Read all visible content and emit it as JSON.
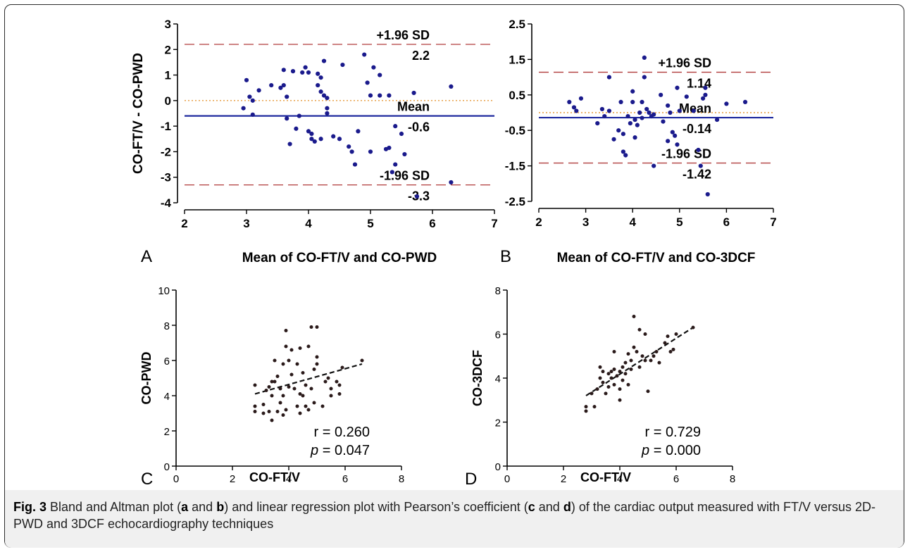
{
  "figure": {
    "caption_label": "Fig. 3",
    "caption_parts": [
      {
        "t": " Bland and Altman plot (",
        "b": false
      },
      {
        "t": "a",
        "b": true
      },
      {
        "t": " and ",
        "b": false
      },
      {
        "t": "b",
        "b": true
      },
      {
        "t": ") and linear regression plot with Pearson’s coefficient (",
        "b": false
      },
      {
        "t": "c",
        "b": true
      },
      {
        "t": " and ",
        "b": false
      },
      {
        "t": "d",
        "b": true
      },
      {
        "t": ") of the cardiac output measured with FT/V versus 2D-PWD and 3DCF echocardiography techniques",
        "b": false
      }
    ]
  },
  "chart_data": [
    {
      "panel_letter": "A",
      "type": "scatter",
      "subtype": "bland-altman",
      "xlabel": "Mean of CO-FT/V and CO-PWD",
      "ylabel": "CO-FT/V - CO-PWD",
      "xlim": [
        2,
        7
      ],
      "ylim": [
        -4,
        3
      ],
      "xticks": [
        "2",
        "3",
        "4",
        "5",
        "6",
        "7"
      ],
      "yticks": [
        "3",
        "2",
        "1",
        "0",
        "-1",
        "-2",
        "-3",
        "-4"
      ],
      "ytick_values": [
        3,
        2,
        1,
        0,
        -1,
        -2,
        -3,
        -4
      ],
      "xtick_values": [
        2,
        3,
        4,
        5,
        6,
        7
      ],
      "mean_line": -0.6,
      "zero_line": 0,
      "upper_loa": 2.2,
      "lower_loa": -3.3,
      "line_labels": {
        "upper": "+1.96 SD",
        "upper_value": "2.2",
        "mean": "Mean",
        "mean_value": "-0.6",
        "lower": "-1.96 SD",
        "lower_value": "-3.3"
      },
      "point_color": "#1a1a8c",
      "points": [
        [
          2.95,
          -0.3
        ],
        [
          3.0,
          0.8
        ],
        [
          3.05,
          0.15
        ],
        [
          3.1,
          0.0
        ],
        [
          3.1,
          -0.55
        ],
        [
          3.2,
          0.4
        ],
        [
          3.4,
          0.6
        ],
        [
          3.55,
          0.5
        ],
        [
          3.6,
          1.2
        ],
        [
          3.6,
          0.6
        ],
        [
          3.65,
          0.15
        ],
        [
          3.65,
          -0.7
        ],
        [
          3.7,
          -1.7
        ],
        [
          3.75,
          1.15
        ],
        [
          3.8,
          -1.1
        ],
        [
          3.85,
          -0.6
        ],
        [
          3.9,
          1.1
        ],
        [
          3.95,
          1.3
        ],
        [
          4.0,
          1.1
        ],
        [
          4.0,
          -1.2
        ],
        [
          4.05,
          -1.5
        ],
        [
          4.05,
          -1.3
        ],
        [
          4.1,
          -1.6
        ],
        [
          4.15,
          0.6
        ],
        [
          4.15,
          1.05
        ],
        [
          4.2,
          0.9
        ],
        [
          4.2,
          0.35
        ],
        [
          4.2,
          -1.5
        ],
        [
          4.25,
          1.55
        ],
        [
          4.25,
          0.2
        ],
        [
          4.3,
          -0.3
        ],
        [
          4.3,
          -0.5
        ],
        [
          4.3,
          0.1
        ],
        [
          4.4,
          -1.4
        ],
        [
          4.5,
          -1.5
        ],
        [
          4.55,
          1.4
        ],
        [
          4.65,
          -1.8
        ],
        [
          4.7,
          -2.0
        ],
        [
          4.75,
          -2.5
        ],
        [
          4.8,
          -1.2
        ],
        [
          4.9,
          1.8
        ],
        [
          4.95,
          0.7
        ],
        [
          5.0,
          0.2
        ],
        [
          5.0,
          -2.0
        ],
        [
          5.05,
          1.3
        ],
        [
          5.15,
          1.0
        ],
        [
          5.15,
          0.2
        ],
        [
          5.25,
          -1.9
        ],
        [
          5.3,
          0.2
        ],
        [
          5.3,
          -1.85
        ],
        [
          5.35,
          -2.8
        ],
        [
          5.4,
          -2.5
        ],
        [
          5.4,
          -1.0
        ],
        [
          5.5,
          -1.3
        ],
        [
          5.55,
          -2.1
        ],
        [
          5.7,
          0.3
        ],
        [
          5.75,
          -3.75
        ],
        [
          6.3,
          -3.2
        ],
        [
          6.3,
          0.55
        ]
      ]
    },
    {
      "panel_letter": "B",
      "type": "scatter",
      "subtype": "bland-altman",
      "xlabel": "Mean of CO-FT/V and CO-3DCF",
      "ylabel": "CO-FT/V - CO-3DCF",
      "xlim": [
        2,
        7
      ],
      "ylim": [
        -2.5,
        2.5
      ],
      "xticks": [
        "2",
        "3",
        "4",
        "5",
        "6",
        "7"
      ],
      "yticks": [
        "2.5",
        "1.5",
        "0.5",
        "-0.5",
        "-1.5",
        "-2.5"
      ],
      "ytick_values": [
        2.5,
        1.5,
        0.5,
        -0.5,
        -1.5,
        -2.5
      ],
      "xtick_values": [
        2,
        3,
        4,
        5,
        6,
        7
      ],
      "mean_line": -0.14,
      "zero_line": 0,
      "upper_loa": 1.14,
      "lower_loa": -1.42,
      "line_labels": {
        "upper": "+1.96 SD",
        "upper_value": "1.14",
        "mean": "Mean",
        "mean_value": "-0.14",
        "lower": "-1.96 SD",
        "lower_value": "-1.42"
      },
      "point_color": "#1a1a8c",
      "points": [
        [
          2.65,
          0.3
        ],
        [
          2.75,
          0.15
        ],
        [
          2.8,
          0.05
        ],
        [
          2.9,
          0.4
        ],
        [
          3.25,
          -0.3
        ],
        [
          3.35,
          0.1
        ],
        [
          3.4,
          -0.1
        ],
        [
          3.5,
          1.0
        ],
        [
          3.5,
          0.05
        ],
        [
          3.6,
          -0.75
        ],
        [
          3.7,
          -0.5
        ],
        [
          3.75,
          0.3
        ],
        [
          3.8,
          -0.6
        ],
        [
          3.8,
          -1.1
        ],
        [
          3.85,
          -1.2
        ],
        [
          3.9,
          -0.1
        ],
        [
          3.95,
          -0.3
        ],
        [
          4.0,
          0.6
        ],
        [
          4.0,
          0.3
        ],
        [
          4.05,
          -0.2
        ],
        [
          4.05,
          -0.7
        ],
        [
          4.1,
          -0.35
        ],
        [
          4.15,
          0.0
        ],
        [
          4.2,
          0.3
        ],
        [
          4.2,
          -0.15
        ],
        [
          4.25,
          1.0
        ],
        [
          4.25,
          1.55
        ],
        [
          4.3,
          0.1
        ],
        [
          4.35,
          0.0
        ],
        [
          4.4,
          -0.1
        ],
        [
          4.45,
          -0.05
        ],
        [
          4.45,
          -1.5
        ],
        [
          4.6,
          0.5
        ],
        [
          4.65,
          -0.25
        ],
        [
          4.75,
          -0.8
        ],
        [
          4.75,
          0.2
        ],
        [
          4.8,
          0.0
        ],
        [
          4.85,
          -0.55
        ],
        [
          4.9,
          -0.65
        ],
        [
          4.95,
          0.7
        ],
        [
          4.95,
          -0.9
        ],
        [
          5.0,
          0.05
        ],
        [
          5.15,
          0.45
        ],
        [
          5.3,
          0.05
        ],
        [
          5.4,
          -1.05
        ],
        [
          5.45,
          -1.5
        ],
        [
          5.5,
          0.4
        ],
        [
          5.55,
          0.5
        ],
        [
          5.55,
          0.7
        ],
        [
          5.6,
          -2.3
        ],
        [
          5.8,
          -0.2
        ],
        [
          6.0,
          0.25
        ],
        [
          6.4,
          0.3
        ]
      ]
    },
    {
      "panel_letter": "C",
      "type": "scatter",
      "subtype": "regression",
      "xlabel": "CO-FT/V",
      "ylabel": "CO-PWD",
      "xlim": [
        0,
        8
      ],
      "ylim": [
        0,
        10
      ],
      "xticks": [
        "0",
        "2",
        "4",
        "6",
        "8"
      ],
      "yticks": [
        "10",
        "8",
        "6",
        "4",
        "2",
        "0"
      ],
      "ytick_values": [
        10,
        8,
        6,
        4,
        2,
        0
      ],
      "xtick_values": [
        0,
        2,
        4,
        6,
        8
      ],
      "fit_line": {
        "x": [
          2.8,
          6.6
        ],
        "y": [
          4.1,
          5.8
        ]
      },
      "stats": {
        "r": "r = 0.260",
        "p_label": "p",
        "p_rest": " = 0.047"
      },
      "point_color": "#2a1a1a",
      "points": [
        [
          2.8,
          4.6
        ],
        [
          2.8,
          3.4
        ],
        [
          2.8,
          3.1
        ],
        [
          3.1,
          3.5
        ],
        [
          3.1,
          3.0
        ],
        [
          3.2,
          4.3
        ],
        [
          3.3,
          3.1
        ],
        [
          3.3,
          4.5
        ],
        [
          3.4,
          4.8
        ],
        [
          3.4,
          4.0
        ],
        [
          3.4,
          2.6
        ],
        [
          3.5,
          6.0
        ],
        [
          3.5,
          4.8
        ],
        [
          3.6,
          5.1
        ],
        [
          3.6,
          3.1
        ],
        [
          3.7,
          4.4
        ],
        [
          3.7,
          3.6
        ],
        [
          3.8,
          5.8
        ],
        [
          3.8,
          4.0
        ],
        [
          3.8,
          2.9
        ],
        [
          3.9,
          7.7
        ],
        [
          3.9,
          6.8
        ],
        [
          3.9,
          3.2
        ],
        [
          4.0,
          6.0
        ],
        [
          4.0,
          4.5
        ],
        [
          4.1,
          6.6
        ],
        [
          4.1,
          5.2
        ],
        [
          4.2,
          4.4
        ],
        [
          4.3,
          5.8
        ],
        [
          4.3,
          3.4
        ],
        [
          4.4,
          6.7
        ],
        [
          4.4,
          4.1
        ],
        [
          4.4,
          3.0
        ],
        [
          4.5,
          5.3
        ],
        [
          4.5,
          4.0
        ],
        [
          4.6,
          4.6
        ],
        [
          4.6,
          3.4
        ],
        [
          4.7,
          6.8
        ],
        [
          4.7,
          3.2
        ],
        [
          4.8,
          7.9
        ],
        [
          4.8,
          4.4
        ],
        [
          4.9,
          5.5
        ],
        [
          4.9,
          3.6
        ],
        [
          5.0,
          7.9
        ],
        [
          5.0,
          6.2
        ],
        [
          5.0,
          5.8
        ],
        [
          5.2,
          3.4
        ],
        [
          5.3,
          4.8
        ],
        [
          5.4,
          5.0
        ],
        [
          5.5,
          4.0
        ],
        [
          5.5,
          4.4
        ],
        [
          5.7,
          4.8
        ],
        [
          5.8,
          4.6
        ],
        [
          5.8,
          4.1
        ],
        [
          5.9,
          5.6
        ],
        [
          6.6,
          6.0
        ]
      ]
    },
    {
      "panel_letter": "D",
      "type": "scatter",
      "subtype": "regression",
      "xlabel": "CO-FT/V",
      "ylabel": "CO-3DCF",
      "xlim": [
        0,
        8
      ],
      "ylim": [
        0,
        8
      ],
      "xticks": [
        "0",
        "2",
        "4",
        "6",
        "8"
      ],
      "yticks": [
        "8",
        "6",
        "4",
        "2",
        "0"
      ],
      "ytick_values": [
        8,
        6,
        4,
        2,
        0
      ],
      "xtick_values": [
        0,
        2,
        4,
        6,
        8
      ],
      "fit_line": {
        "x": [
          2.8,
          6.6
        ],
        "y": [
          3.2,
          6.3
        ]
      },
      "stats": {
        "r": "r = 0.729",
        "p_label": "p",
        "p_rest": " = 0.000"
      },
      "point_color": "#2a1a1a",
      "points": [
        [
          2.8,
          2.5
        ],
        [
          2.8,
          2.7
        ],
        [
          3.0,
          3.3
        ],
        [
          3.1,
          2.7
        ],
        [
          3.2,
          3.5
        ],
        [
          3.3,
          4.0
        ],
        [
          3.3,
          4.5
        ],
        [
          3.4,
          4.3
        ],
        [
          3.4,
          3.8
        ],
        [
          3.5,
          3.3
        ],
        [
          3.6,
          3.6
        ],
        [
          3.6,
          4.2
        ],
        [
          3.7,
          4.0
        ],
        [
          3.7,
          4.3
        ],
        [
          3.8,
          5.2
        ],
        [
          3.8,
          4.4
        ],
        [
          3.8,
          3.7
        ],
        [
          3.9,
          4.1
        ],
        [
          4.0,
          3.5
        ],
        [
          4.0,
          4.3
        ],
        [
          4.0,
          3.0
        ],
        [
          4.1,
          4.5
        ],
        [
          4.1,
          3.9
        ],
        [
          4.2,
          4.7
        ],
        [
          4.2,
          4.2
        ],
        [
          4.3,
          5.1
        ],
        [
          4.3,
          3.7
        ],
        [
          4.4,
          4.4
        ],
        [
          4.4,
          4.8
        ],
        [
          4.5,
          6.8
        ],
        [
          4.5,
          5.4
        ],
        [
          4.6,
          5.2
        ],
        [
          4.7,
          6.2
        ],
        [
          4.7,
          4.5
        ],
        [
          4.8,
          5.0
        ],
        [
          4.9,
          6.0
        ],
        [
          4.9,
          4.8
        ],
        [
          5.0,
          3.4
        ],
        [
          5.1,
          4.8
        ],
        [
          5.2,
          5.0
        ],
        [
          5.3,
          5.2
        ],
        [
          5.4,
          4.7
        ],
        [
          5.6,
          5.6
        ],
        [
          5.7,
          5.9
        ],
        [
          5.8,
          5.2
        ],
        [
          5.9,
          5.3
        ],
        [
          6.0,
          6.0
        ],
        [
          6.6,
          6.3
        ]
      ]
    }
  ]
}
